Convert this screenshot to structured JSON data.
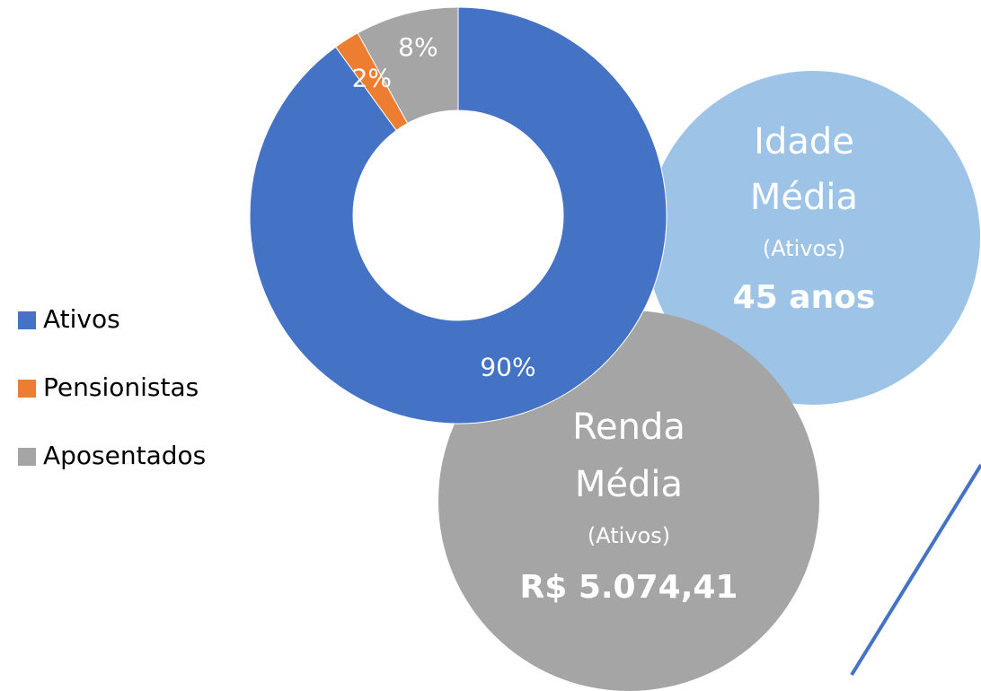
{
  "chart_data": {
    "type": "donut",
    "categories": [
      "Ativos",
      "Pensionistas",
      "Aposentados"
    ],
    "values": [
      90,
      2,
      8
    ],
    "value_labels": [
      "90%",
      "2%",
      "8%"
    ],
    "colors": [
      "#4472c4",
      "#ed7d31",
      "#a5a5a5"
    ],
    "legend": "left"
  },
  "info": [
    {
      "title": [
        "Idade",
        "Média"
      ],
      "subtitle": "(Ativos)",
      "value": "45 anos"
    },
    {
      "title": [
        "Renda",
        "Média"
      ],
      "subtitle": "(Ativos)",
      "value": "R$ 5.074,41"
    }
  ]
}
